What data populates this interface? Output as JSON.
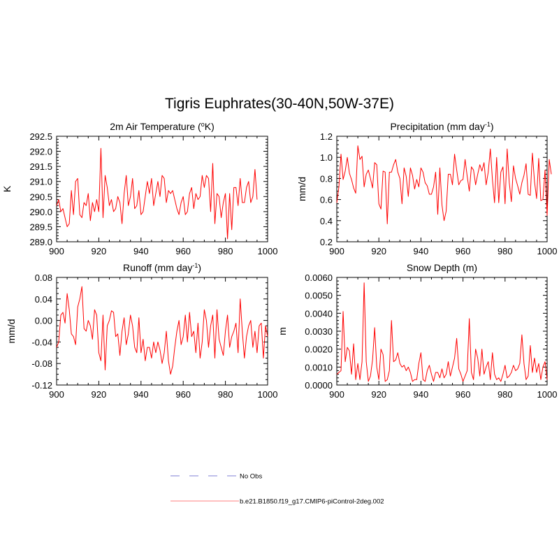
{
  "figure_title": "Tigris Euphrates(30-40N,50W-37E)",
  "colors": {
    "model": "#ff0000",
    "model_legend": "#ff9999",
    "obs_legend": "#9999dd",
    "axis": "#000000"
  },
  "legend": {
    "items": [
      {
        "label": "No Obs",
        "style": "dashed"
      },
      {
        "label": "b.e21.B1850.f19_g17.CMIP6-piControl-2deg.002",
        "style": "solid"
      }
    ]
  },
  "chart_data": [
    {
      "type": "line",
      "title": "2m Air Temperature (oK)",
      "title_parts": {
        "pre": "2m Air Temperature (",
        "sup": "o",
        "post": "K)"
      },
      "xlabel": "",
      "ylabel": "K",
      "xlim": [
        900,
        1000
      ],
      "ylim": [
        289.0,
        292.5
      ],
      "xticks": [
        "900",
        "920",
        "940",
        "960",
        "980",
        "1000"
      ],
      "yticks": [
        "289.0",
        "289.5",
        "290.0",
        "290.5",
        "291.0",
        "291.5",
        "292.0",
        "292.5"
      ],
      "series": [
        {
          "name": "b.e21.B1850.f19_g17.CMIP6-piControl-2deg.002",
          "x_start": 900,
          "values": [
            290.2,
            290.4,
            290.0,
            290.1,
            289.8,
            289.5,
            289.6,
            290.7,
            289.9,
            291.0,
            291.1,
            289.9,
            289.8,
            290.3,
            290.2,
            290.6,
            289.7,
            290.3,
            290.0,
            290.4,
            290.0,
            292.1,
            289.8,
            291.2,
            290.8,
            290.2,
            290.4,
            290.0,
            290.1,
            290.5,
            290.3,
            289.6,
            290.6,
            291.2,
            290.2,
            290.5,
            291.1,
            290.1,
            290.2,
            290.7,
            289.9,
            290.0,
            290.5,
            291.0,
            290.6,
            291.1,
            290.2,
            290.6,
            291.0,
            290.5,
            291.2,
            291.1,
            290.3,
            290.7,
            290.6,
            290.7,
            290.4,
            290.1,
            289.9,
            290.3,
            290.5,
            289.9,
            290.0,
            290.6,
            290.8,
            290.1,
            290.6,
            290.4,
            290.5,
            291.2,
            290.8,
            291.2,
            291.1,
            290.0,
            291.6,
            289.6,
            290.6,
            290.5,
            289.8,
            290.3,
            290.6,
            289.1,
            290.6,
            289.4,
            290.8,
            290.8,
            290.2,
            291.1,
            290.3,
            290.3,
            290.8,
            291.0,
            290.3,
            290.5,
            291.4,
            290.4
          ]
        }
      ]
    },
    {
      "type": "line",
      "title": "Precipitation (mm day-1)",
      "title_parts": {
        "pre": "Precipitation (mm day",
        "sup": "-1",
        "post": ")"
      },
      "xlabel": "",
      "ylabel": "mm/d",
      "xlim": [
        900,
        1000
      ],
      "ylim": [
        0.2,
        1.2
      ],
      "xticks": [
        "900",
        "920",
        "940",
        "960",
        "980",
        "1000"
      ],
      "yticks": [
        "0.2",
        "0.4",
        "0.6",
        "0.8",
        "1.0",
        "1.2"
      ],
      "series": [
        {
          "name": "b.e21.B1850.f19_g17.CMIP6-piControl-2deg.002",
          "x_start": 900,
          "values": [
            0.57,
            0.72,
            1.03,
            0.79,
            0.87,
            1.0,
            0.85,
            0.79,
            0.71,
            0.66,
            1.11,
            0.98,
            1.01,
            0.72,
            0.84,
            0.88,
            0.8,
            0.71,
            0.95,
            0.93,
            0.56,
            0.51,
            0.87,
            0.86,
            0.37,
            0.86,
            0.86,
            0.93,
            0.98,
            0.86,
            0.8,
            0.56,
            0.9,
            0.82,
            0.63,
            0.9,
            0.83,
            0.7,
            0.79,
            0.72,
            0.9,
            0.86,
            0.76,
            0.73,
            0.65,
            0.65,
            0.72,
            0.86,
            0.46,
            0.9,
            0.55,
            0.4,
            0.49,
            0.84,
            0.84,
            0.74,
            1.03,
            0.88,
            0.74,
            0.78,
            0.79,
            0.98,
            0.82,
            0.68,
            0.91,
            0.88,
            0.74,
            0.84,
            0.93,
            0.87,
            0.95,
            0.74,
            0.86,
            1.08,
            0.79,
            0.57,
            1.0,
            0.57,
            0.86,
            0.91,
            0.56,
            1.08,
            0.76,
            0.58,
            0.92,
            0.8,
            0.73,
            0.65,
            0.76,
            0.83,
            0.94,
            0.65,
            0.64,
            1.04,
            0.77,
            0.61,
            0.99,
            0.59,
            0.6,
            0.88,
            0.45,
            0.98,
            0.84
          ]
        }
      ]
    },
    {
      "type": "line",
      "title": "Runoff (mm day-1)",
      "title_parts": {
        "pre": "Runoff (mm day",
        "sup": "-1",
        "post": ")"
      },
      "xlabel": "",
      "ylabel": "mm/d",
      "xlim": [
        900,
        1000
      ],
      "ylim": [
        -0.12,
        0.08
      ],
      "xticks": [
        "900",
        "920",
        "940",
        "960",
        "980",
        "1000"
      ],
      "yticks": [
        "-0.12",
        "-0.08",
        "-0.04",
        "0.00",
        "0.04",
        "0.08"
      ],
      "series": [
        {
          "name": "b.e21.B1850.f19_g17.CMIP6-piControl-2deg.002",
          "x_start": 900,
          "values": [
            -0.05,
            -0.04,
            0.01,
            0.015,
            -0.005,
            0.05,
            0.02,
            -0.025,
            -0.03,
            -0.045,
            0.025,
            0.04,
            0.063,
            -0.015,
            -0.02,
            0.0,
            -0.01,
            -0.035,
            0.02,
            0.01,
            -0.06,
            -0.075,
            0.01,
            -0.092,
            -0.01,
            0.0,
            0.018,
            0.015,
            -0.03,
            -0.025,
            -0.065,
            -0.02,
            0.005,
            -0.045,
            -0.025,
            0.01,
            -0.01,
            -0.05,
            -0.06,
            0.005,
            -0.06,
            -0.035,
            -0.075,
            -0.05,
            -0.05,
            -0.07,
            -0.04,
            -0.06,
            -0.04,
            -0.055,
            -0.08,
            -0.06,
            -0.02,
            -0.075,
            -0.1,
            -0.085,
            -0.05,
            -0.02,
            0.0,
            -0.045,
            -0.03,
            0.01,
            -0.04,
            0.015,
            -0.03,
            -0.02,
            -0.06,
            -0.005,
            -0.07,
            -0.04,
            0.02,
            0.0,
            -0.05,
            -0.01,
            0.01,
            -0.07,
            0.02,
            -0.035,
            -0.05,
            -0.065,
            -0.02,
            0.01,
            -0.05,
            -0.03,
            -0.02,
            -0.005,
            -0.06,
            0.04,
            -0.02,
            -0.07,
            -0.03,
            -0.01,
            0.0,
            -0.05,
            -0.02,
            -0.06,
            -0.01,
            -0.005,
            -0.07,
            -0.01,
            -0.03
          ]
        }
      ]
    },
    {
      "type": "line",
      "title": "Snow Depth (m)",
      "xlabel": "",
      "ylabel": "m",
      "xlim": [
        900,
        1000
      ],
      "ylim": [
        0.0,
        0.006
      ],
      "xticks": [
        "900",
        "920",
        "940",
        "960",
        "980",
        "1000"
      ],
      "yticks": [
        "0.0000",
        "0.0010",
        "0.0020",
        "0.0030",
        "0.0040",
        "0.0050",
        "0.0060"
      ],
      "series": [
        {
          "name": "b.e21.B1850.f19_g17.CMIP6-piControl-2deg.002",
          "x_start": 900,
          "values": [
            0.0006,
            0.0007,
            0.0008,
            0.0041,
            0.0013,
            0.0021,
            0.0019,
            0.0006,
            0.0023,
            0.0003,
            0.0012,
            0.0003,
            0.0013,
            0.0057,
            0.0013,
            0.0002,
            0.0005,
            0.0014,
            0.0032,
            0.001,
            0.0003,
            0.002,
            0.0017,
            0.0002,
            0.0003,
            0.0008,
            0.0036,
            0.0013,
            0.0014,
            0.0018,
            0.0012,
            0.001,
            0.0011,
            0.0008,
            0.001,
            0.0007,
            0.0002,
            0.0003,
            0.0003,
            0.0012,
            0.0018,
            0.0003,
            0.0002,
            0.0008,
            0.0011,
            0.0006,
            0.0002,
            0.0007,
            0.0007,
            0.0004,
            0.0009,
            0.0004,
            0.0006,
            0.0013,
            0.0005,
            0.001,
            0.0015,
            0.0026,
            0.0009,
            0.0006,
            0.0002,
            0.0005,
            0.0008,
            0.0037,
            0.0007,
            0.0003,
            0.002,
            0.0015,
            0.0005,
            0.002,
            0.0006,
            0.001,
            0.0013,
            0.0003,
            0.0018,
            0.0006,
            0.0003,
            0.0004,
            0.0002,
            0.0006,
            0.0011,
            0.0004,
            0.0005,
            0.0007,
            0.0011,
            0.0008,
            0.0009,
            0.0012,
            0.0028,
            0.0012,
            0.0003,
            0.0005,
            0.0022,
            0.0007,
            0.0015,
            0.0007,
            0.0012,
            0.0003,
            0.001,
            0.0013,
            0.0003
          ]
        }
      ]
    }
  ]
}
